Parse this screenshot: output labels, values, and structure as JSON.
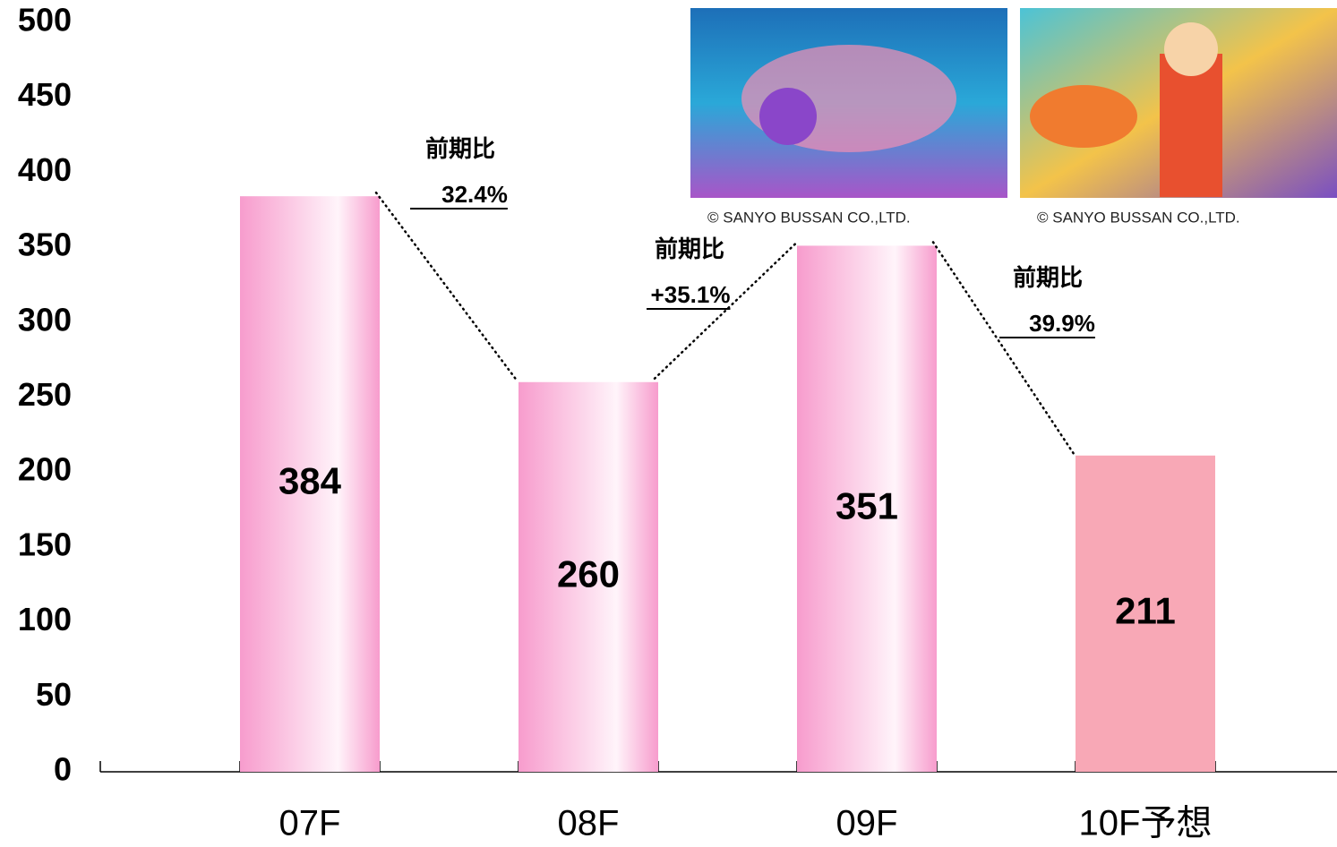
{
  "chart_data": {
    "type": "bar",
    "categories": [
      "07F",
      "08F",
      "09F",
      "10F予想"
    ],
    "values": [
      384,
      260,
      351,
      211
    ],
    "colors": [
      "#f79ccd",
      "#f79ccd",
      "#f79ccd",
      "#f8a8b6"
    ],
    "ylim": [
      0,
      500
    ],
    "yticks": [
      0,
      50,
      100,
      150,
      200,
      250,
      300,
      350,
      400,
      450,
      500
    ],
    "grid": false,
    "annotations": [
      {
        "label": "前期比",
        "change": "32.4%"
      },
      {
        "label": "前期比",
        "change": "+35.1%"
      },
      {
        "label": "前期比",
        "change": "39.9%"
      }
    ],
    "credits": [
      "© SANYO BUSSAN CO.,LTD.",
      "© SANYO BUSSAN CO.,LTD."
    ]
  }
}
